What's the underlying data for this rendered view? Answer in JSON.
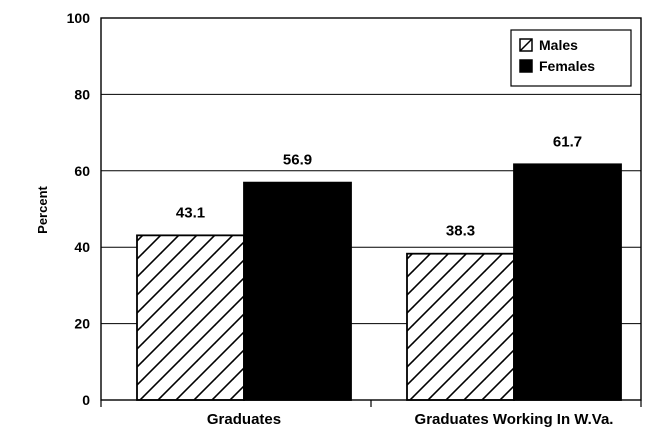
{
  "chart_data": {
    "type": "bar",
    "title": "",
    "xlabel": "",
    "ylabel": "Percent",
    "ylim": [
      0,
      100
    ],
    "yticks": [
      0,
      20,
      40,
      60,
      80,
      100
    ],
    "grid": true,
    "legend_position": "top-right",
    "categories": [
      "Graduates",
      "Graduates Working In W.Va."
    ],
    "series": [
      {
        "name": "Males",
        "values": [
          43.1,
          38.3
        ],
        "fill": "hatched",
        "color": "#000000"
      },
      {
        "name": "Females",
        "values": [
          56.9,
          61.7
        ],
        "fill": "solid",
        "color": "#000000"
      }
    ],
    "data_labels": [
      [
        "43.1",
        "38.3"
      ],
      [
        "56.9",
        "61.7"
      ]
    ]
  }
}
